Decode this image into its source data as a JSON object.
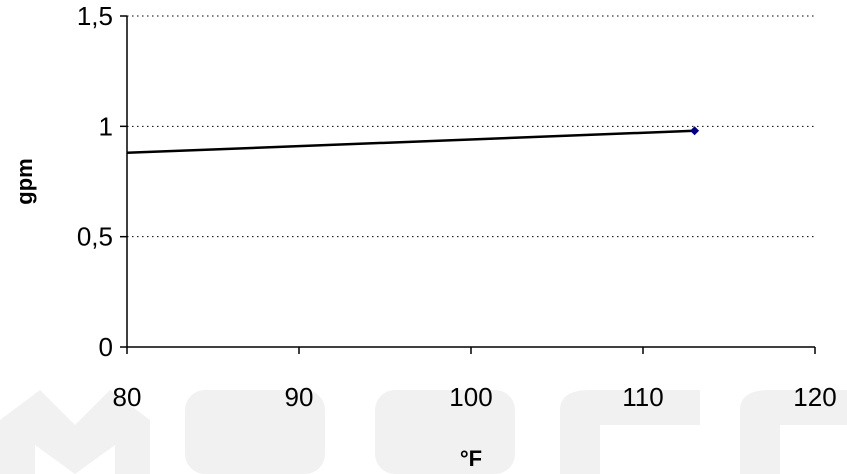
{
  "chart_data": {
    "type": "line",
    "title": "",
    "xlabel": "°F",
    "ylabel": "gpm",
    "xlim": [
      80,
      120
    ],
    "ylim": [
      0,
      1.5
    ],
    "x_ticks": [
      80,
      90,
      100,
      110,
      120
    ],
    "x_tick_labels": [
      "80",
      "90",
      "100",
      "110",
      "120"
    ],
    "y_ticks": [
      0,
      0.5,
      1,
      1.5
    ],
    "y_tick_labels": [
      "0",
      "0,5",
      "1",
      "1,5"
    ],
    "grid": "horizontal dotted",
    "legend": "none",
    "series": [
      {
        "x": [
          80,
          113
        ],
        "y": [
          0.88,
          0.98
        ],
        "color": "#000000",
        "marker_color": "#000080"
      }
    ]
  },
  "watermark": {
    "text": "MOOCC",
    "color": "#f0f0f0"
  }
}
